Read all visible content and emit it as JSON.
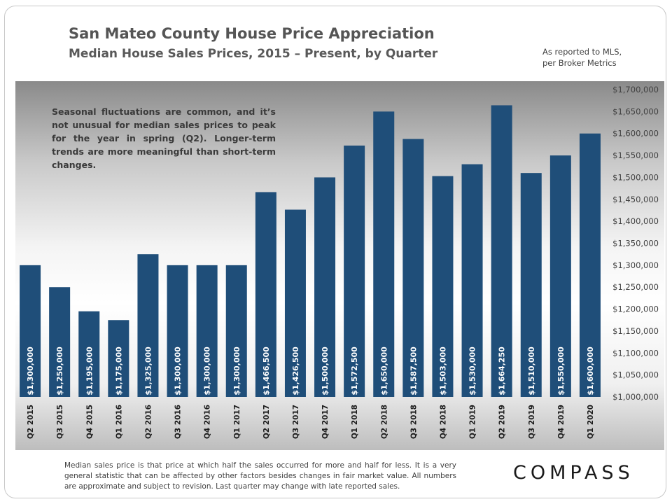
{
  "header": {
    "title": "San Mateo County House Price Appreciation",
    "subtitle": "Median House Sales Prices, 2015 – Present, by Quarter",
    "source_line1": "As reported to MLS,",
    "source_line2": "per Broker Metrics"
  },
  "annotation": "Seasonal fluctuations are common, and it’s not unusual for median sales prices to peak for the year in spring (Q2). Longer-term trends are more meaningful than short-term changes.",
  "footnote": "Median sales price is that price at which half the sales occurred for more and half for less. It is a very general statistic that can be affected by other factors besides changes in fair market value. All numbers are approximate and subject to revision. Last quarter may change with late reported sales.",
  "logo": "COMPASS",
  "colors": {
    "bar": "#1f4e79",
    "label": "#ffffff"
  },
  "chart_data": {
    "type": "bar",
    "categories": [
      "Q2 2015",
      "Q3 2015",
      "Q4 2015",
      "Q1 2016",
      "Q2 2016",
      "Q3 2016",
      "Q4 2016",
      "Q1 2017",
      "Q2 2017",
      "Q3 2017",
      "Q4 2017",
      "Q1 2018",
      "Q2 2018",
      "Q3 2018",
      "Q4 2018",
      "Q1 2019",
      "Q2 2019",
      "Q3 2019",
      "Q4 2019",
      "Q1 2020"
    ],
    "values": [
      1300000,
      1250000,
      1195000,
      1175000,
      1325000,
      1300000,
      1300000,
      1300000,
      1466500,
      1426500,
      1500000,
      1572500,
      1650000,
      1587500,
      1503000,
      1530000,
      1664250,
      1510000,
      1550000,
      1600000
    ],
    "data_labels": [
      "$1,300,000",
      "$1,250,000",
      "$1,195,000",
      "$1,175,000",
      "$1,325,000",
      "$1,300,000",
      "$1,300,000",
      "$1,300,000",
      "$1,466,500",
      "$1,426,500",
      "$1,500,000",
      "$1,572,500",
      "$1,650,000",
      "$1,587,500",
      "$1,503,000",
      "$1,530,000",
      "$1,664,250",
      "$1,510,000",
      "$1,550,000",
      "$1,600,000"
    ],
    "ylim": [
      1000000,
      1700000
    ],
    "y_ticks": [
      1000000,
      1050000,
      1100000,
      1150000,
      1200000,
      1250000,
      1300000,
      1350000,
      1400000,
      1450000,
      1500000,
      1550000,
      1600000,
      1650000,
      1700000
    ],
    "y_tick_labels": [
      "$1,000,000",
      "$1,050,000",
      "$1,100,000",
      "$1,150,000",
      "$1,200,000",
      "$1,250,000",
      "$1,300,000",
      "$1,350,000",
      "$1,400,000",
      "$1,450,000",
      "$1,500,000",
      "$1,550,000",
      "$1,600,000",
      "$1,650,000",
      "$1,700,000"
    ],
    "y_axis_side": "right",
    "grid": false,
    "xlabel": "",
    "ylabel": ""
  }
}
